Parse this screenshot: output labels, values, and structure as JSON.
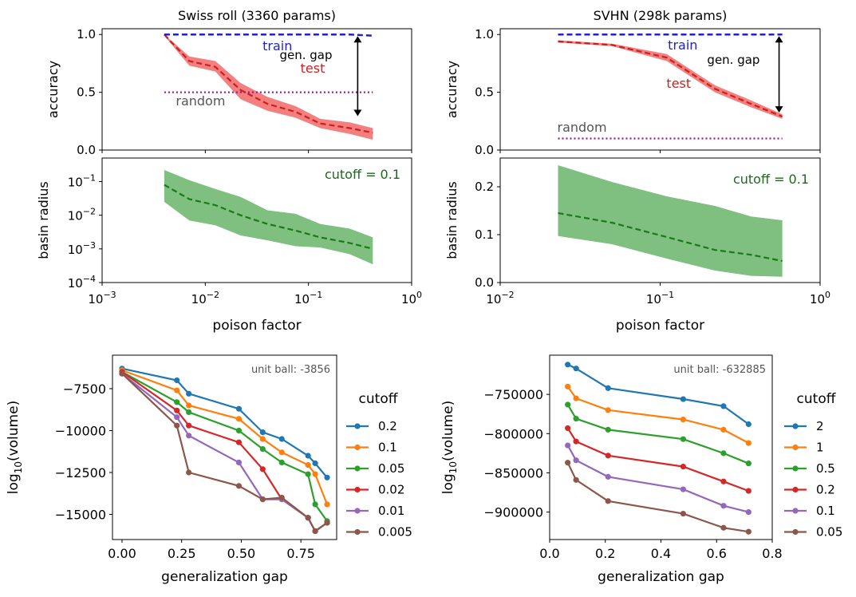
{
  "chart_data": [
    {
      "id": "swiss_acc",
      "type": "line",
      "title": "Swiss roll (3360 params)",
      "xlabel": "",
      "ylabel": "accuracy",
      "xscale": "log",
      "xlim": [
        0.001,
        1
      ],
      "ylim": [
        0,
        1.05
      ],
      "yticks": [
        "0.0",
        "0.5",
        "1.0"
      ],
      "series": [
        {
          "name": "train",
          "color": "#1f1fd6",
          "style": "dashed",
          "x": [
            0.004,
            0.007,
            0.0125,
            0.022,
            0.04,
            0.075,
            0.13,
            0.25,
            0.42
          ],
          "y": [
            1.0,
            1.0,
            1.0,
            1.0,
            1.0,
            1.0,
            1.0,
            1.0,
            0.99
          ]
        },
        {
          "name": "test",
          "color": "#cc1f1f",
          "style": "dashed",
          "band_color": "#f47f7f",
          "x": [
            0.004,
            0.007,
            0.0125,
            0.022,
            0.04,
            0.075,
            0.13,
            0.25,
            0.42
          ],
          "y": [
            1.0,
            0.77,
            0.72,
            0.52,
            0.4,
            0.33,
            0.23,
            0.19,
            0.15
          ],
          "lower": [
            0.99,
            0.73,
            0.68,
            0.44,
            0.34,
            0.28,
            0.19,
            0.14,
            0.09
          ],
          "upper": [
            1.0,
            0.81,
            0.77,
            0.58,
            0.46,
            0.38,
            0.27,
            0.24,
            0.19
          ]
        },
        {
          "name": "random",
          "color": "#8e1f8e",
          "style": "dotted",
          "x": [
            0.004,
            0.42
          ],
          "y": [
            0.5,
            0.5
          ]
        }
      ],
      "annotations": {
        "train": "train",
        "test": "test",
        "random": "random",
        "gap": "gen. gap"
      }
    },
    {
      "id": "svhn_acc",
      "type": "line",
      "title": "SVHN (298k params)",
      "xlabel": "",
      "ylabel": "accuracy",
      "xscale": "log",
      "xlim": [
        0.01,
        1
      ],
      "ylim": [
        0,
        1.05
      ],
      "yticks": [
        "0.0",
        "0.5",
        "1.0"
      ],
      "series": [
        {
          "name": "train",
          "color": "#1f1fd6",
          "style": "dashed",
          "x": [
            0.023,
            0.05,
            0.11,
            0.22,
            0.37,
            0.58
          ],
          "y": [
            1.0,
            1.0,
            1.0,
            1.0,
            1.0,
            1.0
          ]
        },
        {
          "name": "test",
          "color": "#cc1f1f",
          "style": "dashed",
          "band_color": "#f47f7f",
          "x": [
            0.023,
            0.05,
            0.11,
            0.22,
            0.37,
            0.58
          ],
          "y": [
            0.94,
            0.91,
            0.8,
            0.53,
            0.4,
            0.29
          ],
          "lower": [
            0.93,
            0.9,
            0.77,
            0.5,
            0.37,
            0.27
          ],
          "upper": [
            0.95,
            0.92,
            0.83,
            0.56,
            0.43,
            0.31
          ]
        },
        {
          "name": "random",
          "color": "#8e1f8e",
          "style": "dotted",
          "x": [
            0.023,
            0.58
          ],
          "y": [
            0.1,
            0.1
          ]
        }
      ],
      "annotations": {
        "train": "train",
        "test": "test",
        "random": "random",
        "gap": "gen. gap"
      }
    },
    {
      "id": "swiss_radius",
      "type": "area",
      "title": "",
      "xlabel": "poison factor",
      "ylabel": "basin radius",
      "xscale": "log",
      "yscale": "log",
      "xlim": [
        0.001,
        1
      ],
      "ylim": [
        0.0001,
        0.5
      ],
      "annotation": "cutoff = 0.1",
      "series": [
        {
          "name": "",
          "color": "#1a7a1a",
          "style": "dashed",
          "band_color": "#7fbf7f",
          "x": [
            0.004,
            0.007,
            0.0125,
            0.022,
            0.04,
            0.075,
            0.13,
            0.25,
            0.42
          ],
          "y": [
            0.08,
            0.03,
            0.02,
            0.01,
            0.0055,
            0.0035,
            0.0022,
            0.0015,
            0.001
          ],
          "lower": [
            0.025,
            0.007,
            0.005,
            0.0025,
            0.0018,
            0.0012,
            0.0011,
            0.0007,
            0.00035
          ],
          "upper": [
            0.22,
            0.11,
            0.06,
            0.035,
            0.014,
            0.011,
            0.0055,
            0.004,
            0.0022
          ]
        }
      ]
    },
    {
      "id": "svhn_radius",
      "type": "area",
      "title": "",
      "xlabel": "poison factor",
      "ylabel": "basin radius",
      "xscale": "log",
      "xlim": [
        0.01,
        1
      ],
      "ylim": [
        0,
        0.26
      ],
      "yticks": [
        "0.0",
        "0.1",
        "0.2"
      ],
      "annotation": "cutoff = 0.1",
      "series": [
        {
          "name": "",
          "color": "#1a7a1a",
          "style": "dashed",
          "band_color": "#7fbf7f",
          "x": [
            0.023,
            0.05,
            0.11,
            0.22,
            0.37,
            0.58
          ],
          "y": [
            0.145,
            0.125,
            0.095,
            0.068,
            0.058,
            0.045
          ],
          "lower": [
            0.097,
            0.08,
            0.05,
            0.025,
            0.014,
            0.012
          ],
          "upper": [
            0.245,
            0.21,
            0.18,
            0.16,
            0.138,
            0.13
          ]
        }
      ]
    },
    {
      "id": "swiss_volume",
      "type": "line",
      "title": "",
      "xlabel": "generalization gap",
      "ylabel": "log10(volume)",
      "xlim": [
        -0.04,
        0.9
      ],
      "ylim": [
        -16500,
        -5500
      ],
      "yticks": [
        -7500,
        -10000,
        -12500,
        -15000
      ],
      "ytick_labels": [
        "−7500",
        "−10000",
        "−12500",
        "−15000"
      ],
      "annotation": "unit ball: -3856",
      "legend_title": "cutoff",
      "legend_position": "right",
      "x": [
        0.0,
        0.23,
        0.28,
        0.49,
        0.59,
        0.67,
        0.78,
        0.81,
        0.86
      ],
      "series": [
        {
          "name": "0.2",
          "color": "#1f77b4",
          "values": [
            -6300,
            -7000,
            -7800,
            -8700,
            -10100,
            -10500,
            -11500,
            -11950,
            -12800
          ]
        },
        {
          "name": "0.1",
          "color": "#ff7f0e",
          "values": [
            -6400,
            -7600,
            -8500,
            -9300,
            -10500,
            -11300,
            -12050,
            -12600,
            -14400
          ]
        },
        {
          "name": "0.05",
          "color": "#2ca02c",
          "values": [
            -6500,
            -8300,
            -8900,
            -10000,
            -11100,
            -11900,
            -12600,
            -14400,
            -15400
          ]
        },
        {
          "name": "0.02",
          "color": "#d62728",
          "values": [
            -6500,
            -8800,
            -9700,
            -10700,
            -12300,
            -14100,
            -15200,
            -16000,
            -15500
          ]
        },
        {
          "name": "0.01",
          "color": "#9467bd",
          "values": [
            -6600,
            -9200,
            -10300,
            -11900,
            -14100,
            -14100,
            -15200,
            -16000,
            -15500
          ]
        },
        {
          "name": "0.005",
          "color": "#8c564b",
          "values": [
            -6600,
            -9700,
            -12500,
            -13300,
            -14100,
            -14000,
            -15200,
            -16000,
            -15500
          ]
        }
      ]
    },
    {
      "id": "svhn_volume",
      "type": "line",
      "title": "",
      "xlabel": "generalization gap",
      "ylabel": "log10(volume)",
      "xlim": [
        0.0,
        0.8
      ],
      "ylim": [
        -935000,
        -700000
      ],
      "xticks": [
        "0.0",
        "0.2",
        "0.4",
        "0.6",
        "0.8"
      ],
      "yticks": [
        -750000,
        -800000,
        -850000,
        -900000
      ],
      "ytick_labels": [
        "−750000",
        "−800000",
        "−850000",
        "−900000"
      ],
      "annotation": "unit ball: -632885",
      "legend_title": "cutoff",
      "legend_position": "right",
      "x": [
        0.065,
        0.095,
        0.21,
        0.48,
        0.625,
        0.715
      ],
      "series": [
        {
          "name": "2",
          "color": "#1f77b4",
          "values": [
            -712000,
            -717000,
            -742000,
            -756000,
            -765000,
            -788000
          ]
        },
        {
          "name": "1",
          "color": "#ff7f0e",
          "values": [
            -740000,
            -755000,
            -770000,
            -782000,
            -795000,
            -812000
          ]
        },
        {
          "name": "0.5",
          "color": "#2ca02c",
          "values": [
            -763000,
            -781000,
            -795000,
            -807000,
            -825000,
            -838000
          ]
        },
        {
          "name": "0.2",
          "color": "#d62728",
          "values": [
            -793000,
            -810000,
            -828000,
            -842000,
            -861000,
            -873000
          ]
        },
        {
          "name": "0.1",
          "color": "#9467bd",
          "values": [
            -815000,
            -834000,
            -855000,
            -871000,
            -892000,
            -900000
          ]
        },
        {
          "name": "0.05",
          "color": "#8c564b",
          "values": [
            -837000,
            -859000,
            -886000,
            -902000,
            -920000,
            -925000
          ]
        }
      ]
    }
  ]
}
